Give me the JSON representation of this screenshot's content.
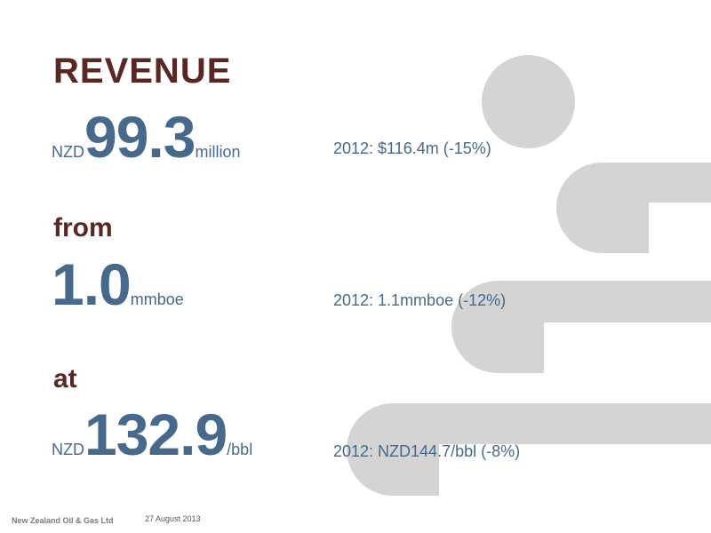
{
  "slide": {
    "title": "REVENUE",
    "revenue": {
      "prefix": "NZD",
      "value": "99.3",
      "suffix": "million",
      "comparison": "2012: $116.4m (-15%)"
    },
    "from": {
      "label": "from",
      "value": "1.0",
      "suffix": "mmboe",
      "comparison": "2012: 1.1mmboe (-12%)"
    },
    "at": {
      "label": "at",
      "prefix": "NZD",
      "value": "132.9",
      "suffix": "/bbl",
      "comparison": "2012: NZD144.7/bbl (-8%)"
    }
  },
  "footer": {
    "company": "New Zealand Oil & Gas Ltd",
    "date": "27 August 2013"
  },
  "colors": {
    "heading": "#5a2722",
    "value": "#47698c",
    "decoration": "#d4d4d5"
  }
}
